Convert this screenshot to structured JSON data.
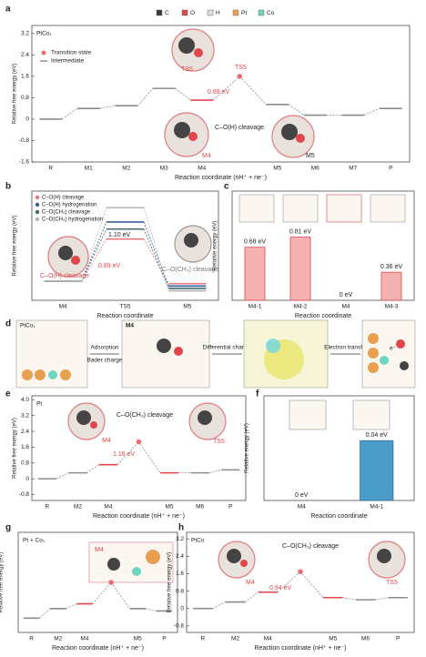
{
  "panel_labels": [
    "a",
    "b",
    "c",
    "d",
    "e",
    "f",
    "g",
    "h"
  ],
  "atoms": [
    {
      "name": "C",
      "color": "#3a3a3a"
    },
    {
      "name": "O",
      "color": "#e0464b"
    },
    {
      "name": "H",
      "color": "#dddddd"
    },
    {
      "name": "Pt",
      "color": "#e8a050"
    },
    {
      "name": "Co",
      "color": "#6cd6c0"
    }
  ],
  "panel_d": {
    "title": "PtCo₁",
    "labels": [
      "Adsorption",
      "Bader charge",
      "Differential charge",
      "Electron transfer"
    ],
    "intermediate": "M4",
    "electron": "e⁻"
  },
  "chart_data": [
    {
      "type": "energy_diagram",
      "title": "PtCo₁",
      "legend": [
        "Transition state",
        "Intermediate"
      ],
      "categories": [
        "R",
        "M1",
        "M2",
        "M3",
        "M4",
        null,
        "M5",
        "M6",
        "M7",
        "P"
      ],
      "category_colors": [
        "#222",
        "#222",
        "#222",
        "#222",
        "#e0464b",
        "#222",
        "#222",
        "#222",
        "#222",
        "#222"
      ],
      "series": [
        {
          "color": "#8c8c8c",
          "ts_color": "#ef6b73",
          "point_colors": [
            "#8c8c8c",
            "#8c8c8c",
            "#8c8c8c",
            "#8c8c8c",
            "#e0464b",
            "#ef6b73",
            "#8c8c8c",
            "#8c8c8c",
            "#8c8c8c",
            "#8c8c8c"
          ],
          "values": [
            0,
            0.4,
            0.5,
            1.15,
            0.71,
            1.6,
            0.55,
            0.15,
            0.15,
            0.4
          ]
        }
      ],
      "ylim": [
        -1.6,
        3.5
      ],
      "yticks": [
        -1.6,
        -0.8,
        0,
        0.8,
        1.6,
        2.4,
        3.2
      ],
      "x_label": "Reaction coordinate  (nH⁺ + ne⁻)",
      "y_label": "Relative free energy (eV)",
      "annotations": [
        "TS5",
        "0.89 eV",
        "TS5",
        "C–O(H) cleavage",
        "M4",
        "M5"
      ]
    },
    {
      "type": "energy_diagram",
      "categories": [
        "M4",
        "TS5",
        "M5"
      ],
      "category_colors": [
        "#e0464b",
        "#e0464b",
        "#222"
      ],
      "series": [
        {
          "name": "C–O(H) cleavage",
          "color": "#e8787a",
          "values": [
            0,
            0.89,
            -0.05
          ]
        },
        {
          "name": "C–O(H) hydrogenation",
          "color": "#3a5fa0",
          "values": [
            0,
            1.25,
            -0.1
          ]
        },
        {
          "name": "C–O(CH₃) cleavage",
          "color": "#3e6b6b",
          "values": [
            0,
            1.1,
            -0.15
          ]
        },
        {
          "name": "C–O(CH₃) hydrogenation",
          "color": "#b5b5b5",
          "values": [
            0,
            1.55,
            -0.2
          ]
        }
      ],
      "ylim": [
        -0.4,
        1.9
      ],
      "x_label": "Reaction coordinate",
      "y_label": "Relative free energy (eV)",
      "annotations": [
        "0.89 eV",
        "1.10 eV",
        "C–O(H) cleavage",
        "C–O(CH₃) cleavage"
      ]
    },
    {
      "type": "bar",
      "categories": [
        "M4-1",
        "M4-2",
        "M4",
        "M4-3"
      ],
      "category_colors": [
        "#222",
        "#222",
        "#e0464b",
        "#222"
      ],
      "values": [
        0.68,
        0.81,
        0,
        0.36
      ],
      "value_labels": [
        "0.68 eV",
        "0.81 eV",
        "0 eV",
        "0.36 eV"
      ],
      "value_label_colors": [
        "#222",
        "#222",
        "#e0464b",
        "#222"
      ],
      "color": "#f4b3b2",
      "edge_color": "#e0464b",
      "ylim": [
        0,
        1.4
      ],
      "x_label": "Reaction coordinate",
      "y_label": "Relative energy (eV)"
    },
    {
      "type": "energy_diagram",
      "title": "Pt",
      "categories": [
        "R",
        "M2",
        "M4",
        null,
        "M5",
        "M6",
        "P"
      ],
      "category_colors": [
        "#222",
        "#222",
        "#e0464b",
        "#222",
        "#222",
        "#222",
        "#222"
      ],
      "series": [
        {
          "color": "#8c8c8c",
          "ts_color": "#ef6b73",
          "point_colors": [
            "#8c8c8c",
            "#8c8c8c",
            "#e0464b",
            "#ef6b73",
            "#e0464b",
            "#8c8c8c",
            "#8c8c8c"
          ],
          "values": [
            0,
            0.3,
            0.71,
            1.87,
            0.3,
            0.3,
            0.45
          ]
        }
      ],
      "ylim": [
        -1.1,
        4.2
      ],
      "yticks": [
        -0.8,
        0,
        0.8,
        1.6,
        2.4,
        3.2,
        {
          "value": 4,
          "label": "4.0"
        }
      ],
      "x_label": "Reaction coordinate  (nH⁺ + ne⁻)",
      "y_label": "Relative free energy (eV)",
      "annotations": [
        "C–O(CH₃) cleavage",
        "1.16 eV",
        "M4",
        "TS5"
      ]
    },
    {
      "type": "bar",
      "categories": [
        "M4",
        "M4-1"
      ],
      "category_colors": [
        "#222",
        "#222"
      ],
      "values": [
        0,
        0.04
      ],
      "value_labels": [
        "0 eV",
        "0.04 eV"
      ],
      "value_label_colors": [
        "#222",
        "#222"
      ],
      "color": "#4a9cc9",
      "edge_color": "#2f6f99",
      "ylim": [
        0,
        0.07
      ],
      "x_label": "Reaction coordinate",
      "y_label": "Relative energy (eV)"
    },
    {
      "type": "energy_diagram",
      "title": "Pt + Co₁",
      "categories": [
        "R",
        "M2",
        "M4",
        null,
        "M5",
        "P"
      ],
      "category_colors": [
        "#222",
        "#222",
        "#e0464b",
        "#222",
        "#222",
        "#222"
      ],
      "series": [
        {
          "color": "#8c8c8c",
          "ts_color": "#ef6b73",
          "point_colors": [
            "#8c8c8c",
            "#8c8c8c",
            "#e0464b",
            "#ef6b73",
            "#8c8c8c",
            "#8c8c8c"
          ],
          "values": [
            0,
            0.4,
            0.6,
            1.5,
            0.4,
            0.3
          ]
        }
      ],
      "ylim": [
        -0.6,
        3.6
      ],
      "x_label": "Reaction coordinate  (nH⁺ + ne⁻)",
      "y_label": "Relative free energy (eV)",
      "annotations": [
        "M4"
      ]
    },
    {
      "type": "energy_diagram",
      "title": "PtCo",
      "categories": [
        "R",
        "M2",
        "M4",
        null,
        "M5",
        "M6",
        "P"
      ],
      "category_colors": [
        "#222",
        "#222",
        "#e0464b",
        "#222",
        "#222",
        "#222",
        "#222"
      ],
      "series": [
        {
          "color": "#8c8c8c",
          "ts_color": "#ef6b73",
          "point_colors": [
            "#8c8c8c",
            "#8c8c8c",
            "#e0464b",
            "#ef6b73",
            "#e0464b",
            "#8c8c8c",
            "#8c8c8c"
          ],
          "values": [
            0,
            0.3,
            0.75,
            1.69,
            0.5,
            0.4,
            0.5
          ]
        }
      ],
      "ylim": [
        -1.1,
        3.5
      ],
      "yticks": [
        -0.8,
        0,
        0.8,
        1.6,
        2.4,
        3.2
      ],
      "x_label": "Reaction coordinate  (nH⁺ + ne⁻)",
      "y_label": "Relative free energy (eV)",
      "annotations": [
        "C–O(CH₃) cleavage",
        "0.94 eV",
        "M4",
        "TS5"
      ]
    }
  ]
}
